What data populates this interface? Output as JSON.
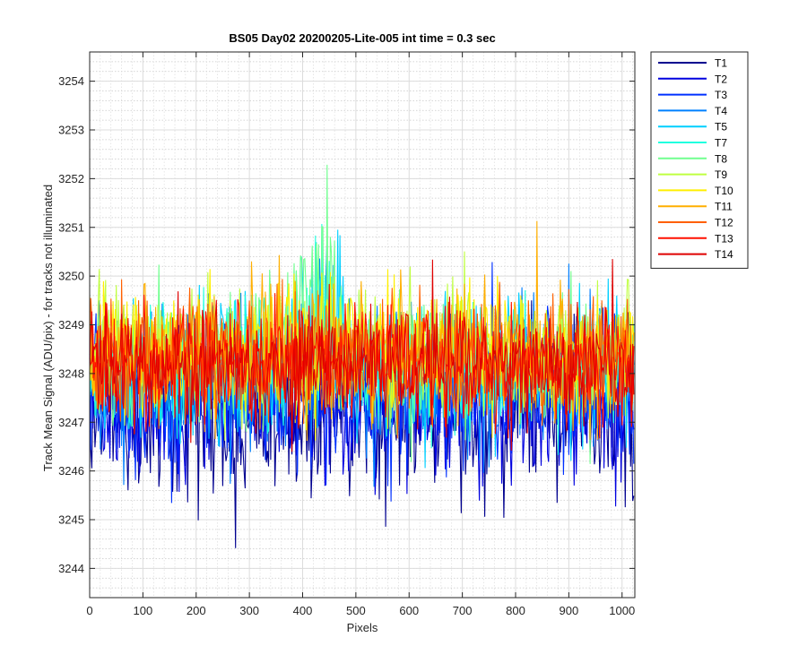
{
  "chart_data": {
    "type": "line",
    "title": "BS05 Day02 20200205-Lite-005 int time = 0.3 sec",
    "xlabel": "Pixels",
    "ylabel": "Track Mean Signal (ADU/pix) - for tracks not illuminated",
    "xlim": [
      0,
      1024
    ],
    "ylim": [
      3243.4,
      3254.6
    ],
    "xticks": [
      "0",
      "100",
      "200",
      "300",
      "400",
      "500",
      "600",
      "700",
      "800",
      "900",
      "1000"
    ],
    "yticks": [
      "3244",
      "3245",
      "3246",
      "3247",
      "3248",
      "3249",
      "3250",
      "3251",
      "3252",
      "3253",
      "3254"
    ],
    "grid": true,
    "minor_grid": true,
    "legend_position": "outside-top-right",
    "series": [
      {
        "name": "T1",
        "color": "#00008f",
        "mean": 3247.1,
        "spread": 1.1
      },
      {
        "name": "T2",
        "color": "#0000df",
        "mean": 3247.4,
        "spread": 1.05
      },
      {
        "name": "T3",
        "color": "#0030ff",
        "mean": 3247.6,
        "spread": 1.0
      },
      {
        "name": "T4",
        "color": "#0080ff",
        "mean": 3247.9,
        "spread": 0.95
      },
      {
        "name": "T5",
        "color": "#00cfff",
        "mean": 3248.1,
        "spread": 0.9
      },
      {
        "name": "T7",
        "color": "#20ffdf",
        "mean": 3248.2,
        "spread": 0.85
      },
      {
        "name": "T8",
        "color": "#70ff8f",
        "mean": 3248.3,
        "spread": 0.85
      },
      {
        "name": "T9",
        "color": "#bfff40",
        "mean": 3248.4,
        "spread": 0.85
      },
      {
        "name": "T10",
        "color": "#ffef00",
        "mean": 3248.5,
        "spread": 0.85
      },
      {
        "name": "T11",
        "color": "#ffaf00",
        "mean": 3248.4,
        "spread": 0.85
      },
      {
        "name": "T12",
        "color": "#ff6000",
        "mean": 3248.3,
        "spread": 0.85
      },
      {
        "name": "T13",
        "color": "#ff1000",
        "mean": 3248.2,
        "spread": 0.8
      },
      {
        "name": "T14",
        "color": "#df0000",
        "mean": 3248.2,
        "spread": 0.8
      }
    ]
  }
}
